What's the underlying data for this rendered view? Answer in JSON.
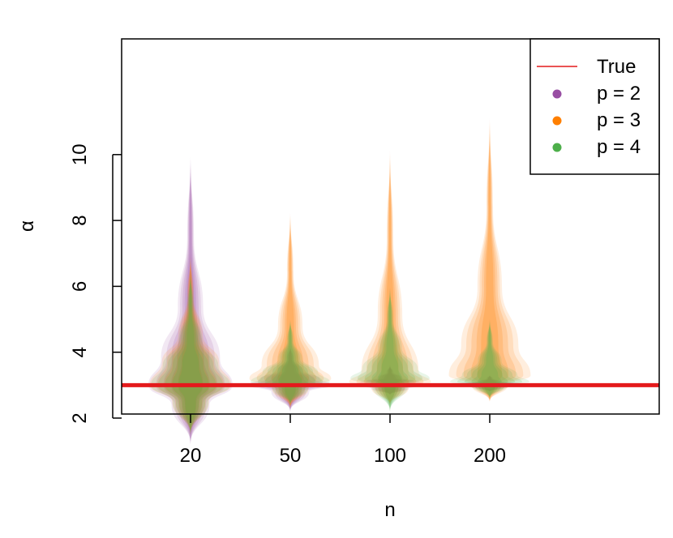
{
  "chart_data": {
    "type": "violin",
    "xlabel": "n",
    "ylabel": "α",
    "categories": [
      "20",
      "50",
      "100",
      "200"
    ],
    "y_ticks": [
      "2",
      "4",
      "6",
      "8",
      "10"
    ],
    "ylim": [
      0,
      11.3
    ],
    "true_value": 3,
    "grid": false,
    "legend_position": "top-right",
    "legend": [
      {
        "label": "True",
        "kind": "line",
        "color": "#e41a1c"
      },
      {
        "label": "p = 2",
        "kind": "point",
        "color": "#984ea3"
      },
      {
        "label": "p = 3",
        "kind": "point",
        "color": "#ff7f00"
      },
      {
        "label": "p = 4",
        "kind": "point",
        "color": "#4daf4a"
      }
    ],
    "series": [
      {
        "name": "p = 2",
        "color": "#984ea3",
        "violins": [
          {
            "category": "20",
            "min": 1.2,
            "q1": 2.4,
            "median": 3.0,
            "q3": 3.8,
            "max": 10.0
          },
          {
            "category": "50",
            "min": 2.2,
            "q1": 2.8,
            "median": 3.0,
            "q3": 3.2,
            "max": 4.2
          },
          {
            "category": "100",
            "min": 2.7,
            "q1": 2.9,
            "median": 3.0,
            "q3": 3.1,
            "max": 3.6
          },
          {
            "category": "200",
            "min": 2.8,
            "q1": 2.95,
            "median": 3.0,
            "q3": 3.05,
            "max": 3.3
          }
        ]
      },
      {
        "name": "p = 3",
        "color": "#ff7f00",
        "violins": [
          {
            "category": "20",
            "min": 1.5,
            "q1": 2.5,
            "median": 3.0,
            "q3": 3.7,
            "max": 7.0
          },
          {
            "category": "50",
            "min": 2.3,
            "q1": 2.9,
            "median": 3.2,
            "q3": 3.6,
            "max": 8.3
          },
          {
            "category": "100",
            "min": 2.4,
            "q1": 2.9,
            "median": 3.1,
            "q3": 3.4,
            "max": 10.2
          },
          {
            "category": "200",
            "min": 2.5,
            "q1": 3.0,
            "median": 3.3,
            "q3": 4.2,
            "max": 11.2
          }
        ]
      },
      {
        "name": "p = 4",
        "color": "#4daf4a",
        "violins": [
          {
            "category": "20",
            "min": 1.5,
            "q1": 2.5,
            "median": 3.0,
            "q3": 3.6,
            "max": 6.5
          },
          {
            "category": "50",
            "min": 2.4,
            "q1": 2.9,
            "median": 3.1,
            "q3": 3.4,
            "max": 5.0
          },
          {
            "category": "100",
            "min": 2.2,
            "q1": 3.0,
            "median": 3.2,
            "q3": 3.5,
            "max": 6.0
          },
          {
            "category": "200",
            "min": 2.6,
            "q1": 3.0,
            "median": 3.1,
            "q3": 3.3,
            "max": 5.0
          }
        ]
      }
    ]
  }
}
